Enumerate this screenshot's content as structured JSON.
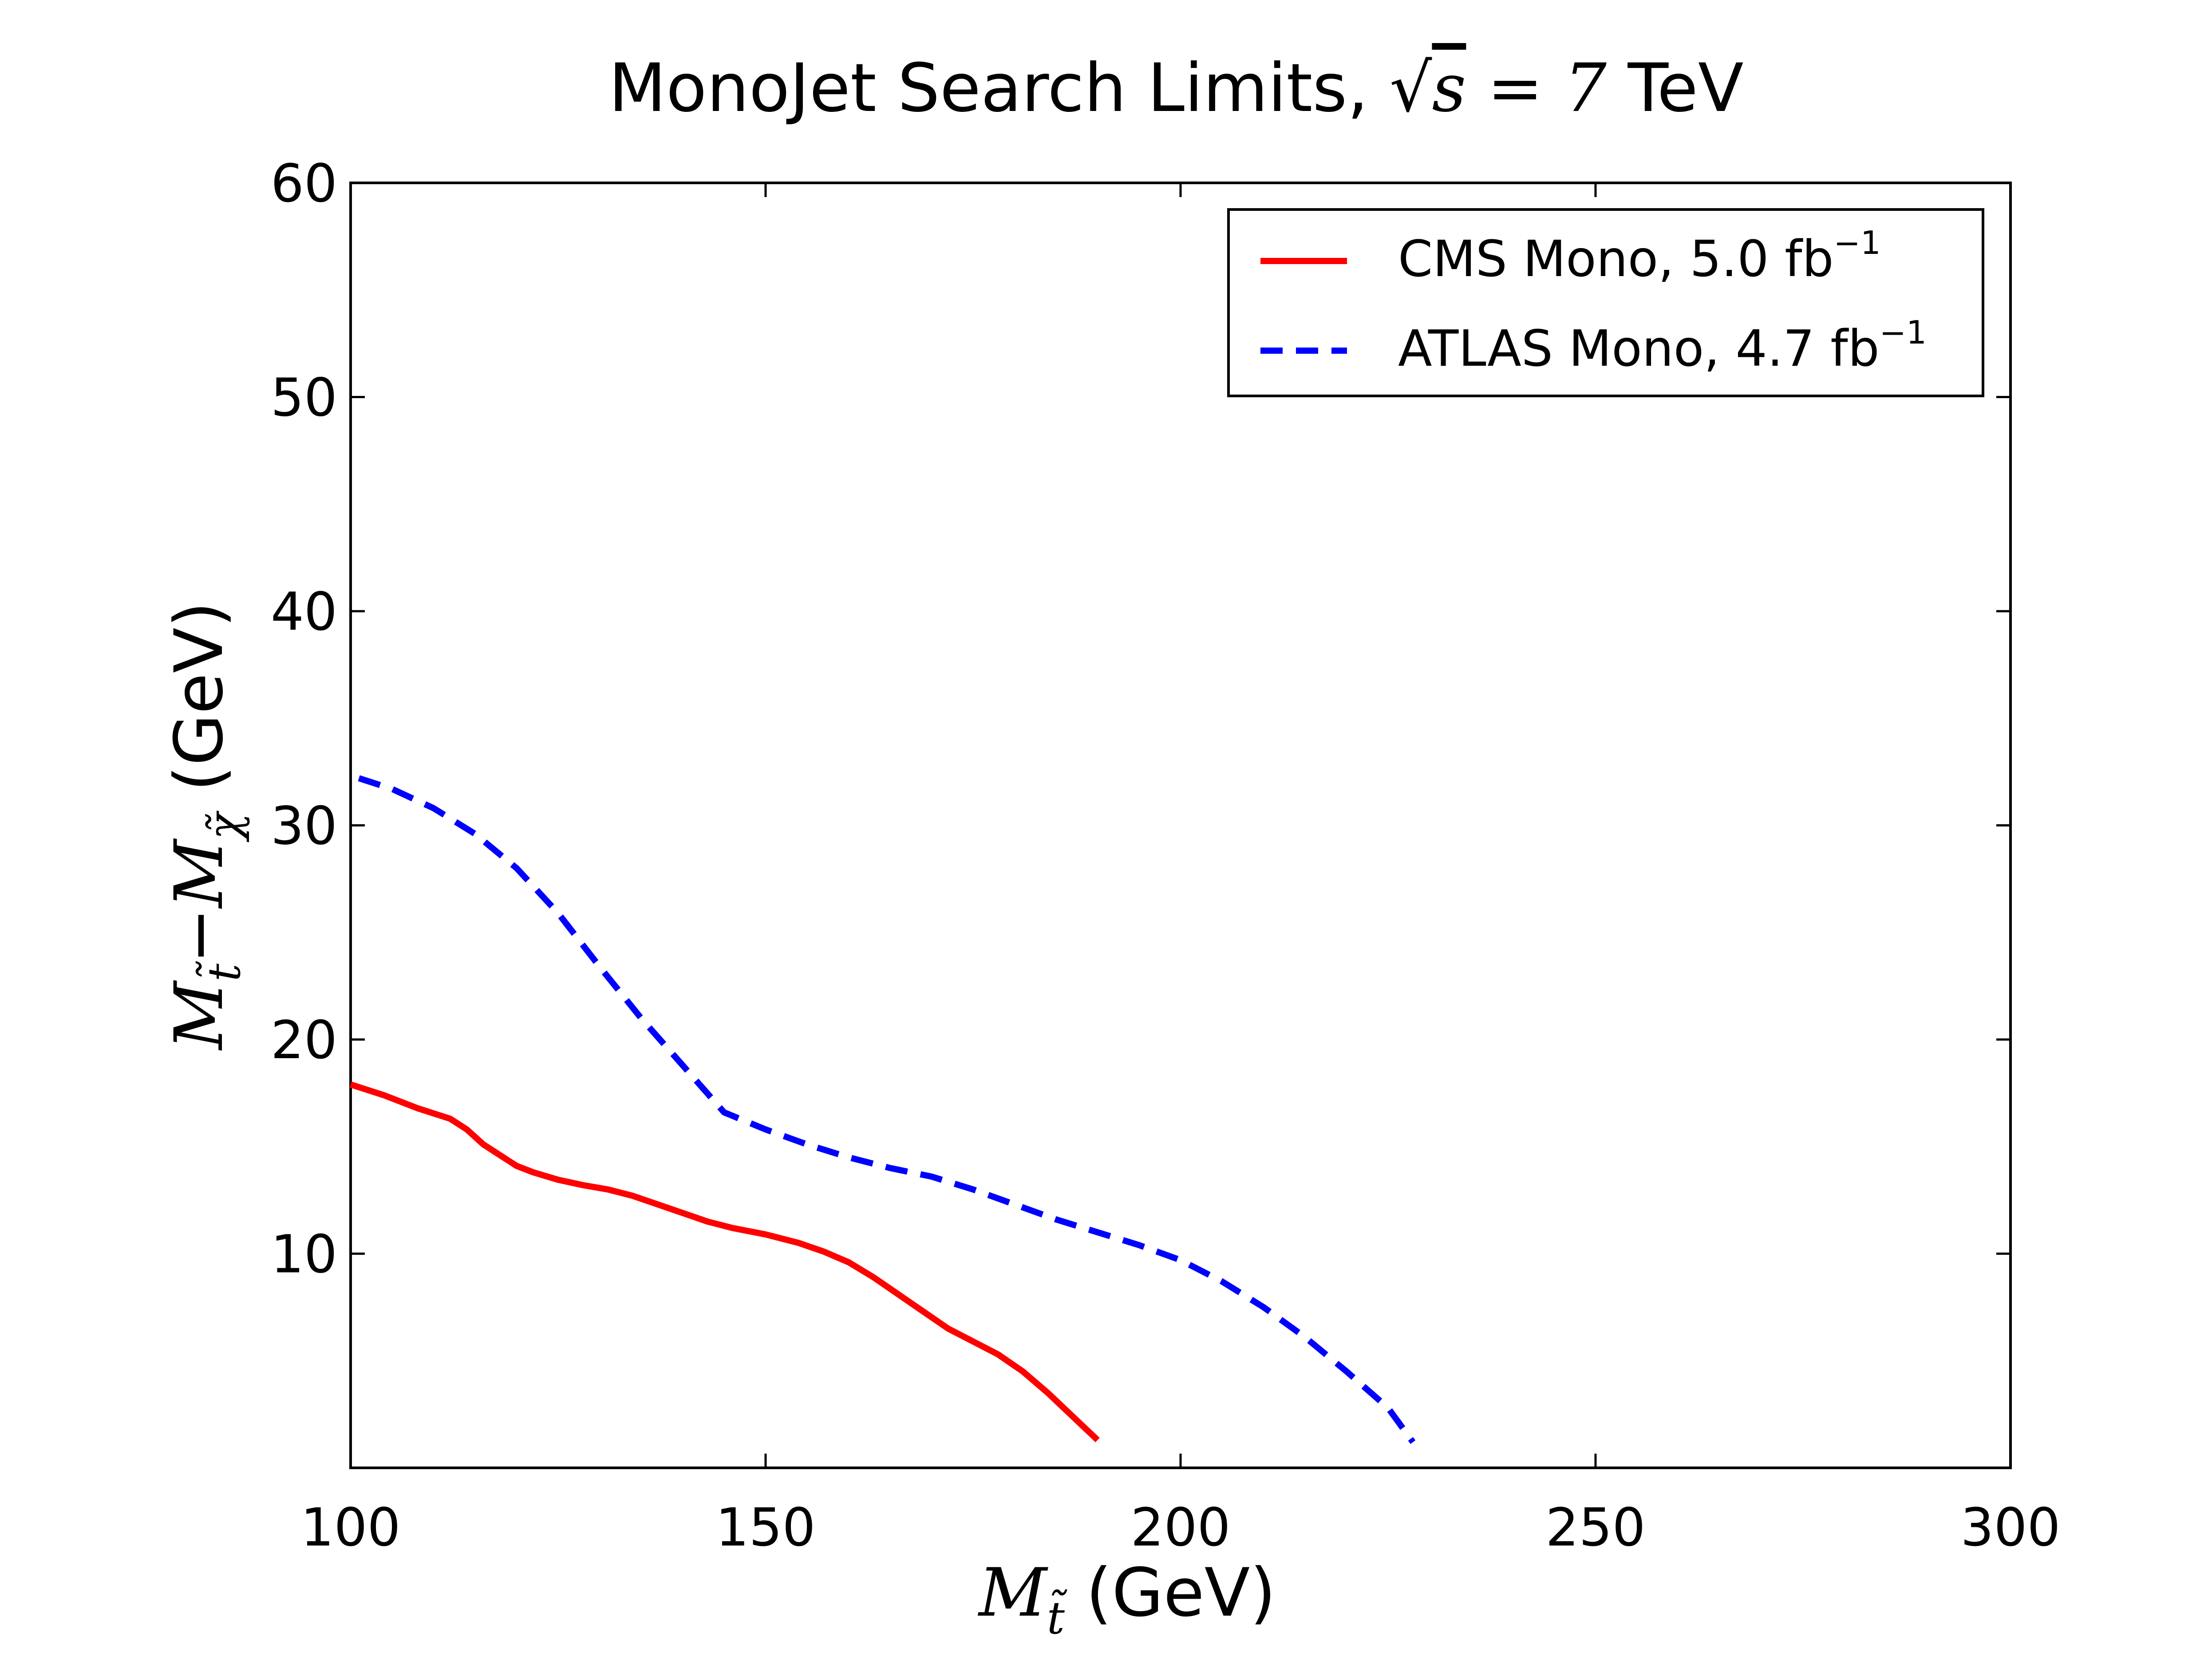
{
  "chart_data": {
    "type": "line",
    "title": "MonoJet Search Limits, √s = 7 TeV",
    "title_parts": {
      "prefix": "MonoJet Search Limits, ",
      "sqrt_symbol": "√",
      "sqrt_var": "s",
      "equals": " = ",
      "energy": "7",
      "unit": " TeV"
    },
    "xlabel": "M_t̃ (GeV)",
    "xlabel_parts": {
      "var": "M",
      "sub": "t̃",
      "unit": " (GeV)"
    },
    "ylabel": "M_t̃ − M_χ̃ (GeV)",
    "ylabel_parts": {
      "var1": "M",
      "sub1": "t̃",
      "minus": "−",
      "var2": "M",
      "sub2": "χ̃",
      "unit": " (GeV)"
    },
    "xlim": [
      100,
      300
    ],
    "ylim": [
      0,
      60
    ],
    "xticks": [
      100,
      150,
      200,
      250,
      300
    ],
    "yticks": [
      10,
      20,
      30,
      40,
      50,
      60
    ],
    "xtick_labels": [
      "100",
      "150",
      "200",
      "250",
      "300"
    ],
    "ytick_labels": [
      "10",
      "20",
      "30",
      "40",
      "50",
      "60"
    ],
    "grid": false,
    "legend_position": "top-right",
    "series": [
      {
        "name": "CMS Mono, 5.0 fb⁻¹",
        "label_text": "CMS Mono, 5.0 fb",
        "label_sup": "−1",
        "color": "#ff0000",
        "style": "solid",
        "x": [
          100,
          104,
          108,
          112,
          114,
          116,
          118,
          120,
          122,
          125,
          128,
          131,
          134,
          137,
          140,
          143,
          146,
          150,
          154,
          157,
          160,
          163,
          166,
          169,
          172,
          175,
          178,
          181,
          184,
          187,
          190
        ],
        "y": [
          17.9,
          17.4,
          16.8,
          16.3,
          15.8,
          15.1,
          14.6,
          14.1,
          13.8,
          13.45,
          13.2,
          13.0,
          12.7,
          12.3,
          11.9,
          11.5,
          11.2,
          10.9,
          10.5,
          10.1,
          9.6,
          8.9,
          8.1,
          7.3,
          6.5,
          5.9,
          5.3,
          4.5,
          3.5,
          2.4,
          1.3
        ]
      },
      {
        "name": "ATLAS Mono, 4.7 fb⁻¹",
        "label_text": "ATLAS Mono, 4.7 fb",
        "label_sup": "−1",
        "color": "#0000ff",
        "style": "dashed",
        "x": [
          101,
          105,
          110,
          115,
          120,
          125,
          130,
          135,
          140,
          145,
          150,
          155,
          160,
          165,
          170,
          175,
          180,
          185,
          190,
          195,
          200,
          205,
          210,
          215,
          220,
          225,
          228
        ],
        "y": [
          32.2,
          31.7,
          30.8,
          29.6,
          28.0,
          25.9,
          23.4,
          21.0,
          18.8,
          16.6,
          15.8,
          15.1,
          14.5,
          14.0,
          13.6,
          13.0,
          12.3,
          11.6,
          11.0,
          10.4,
          9.7,
          8.7,
          7.5,
          6.1,
          4.5,
          2.8,
          1.2
        ]
      }
    ]
  }
}
